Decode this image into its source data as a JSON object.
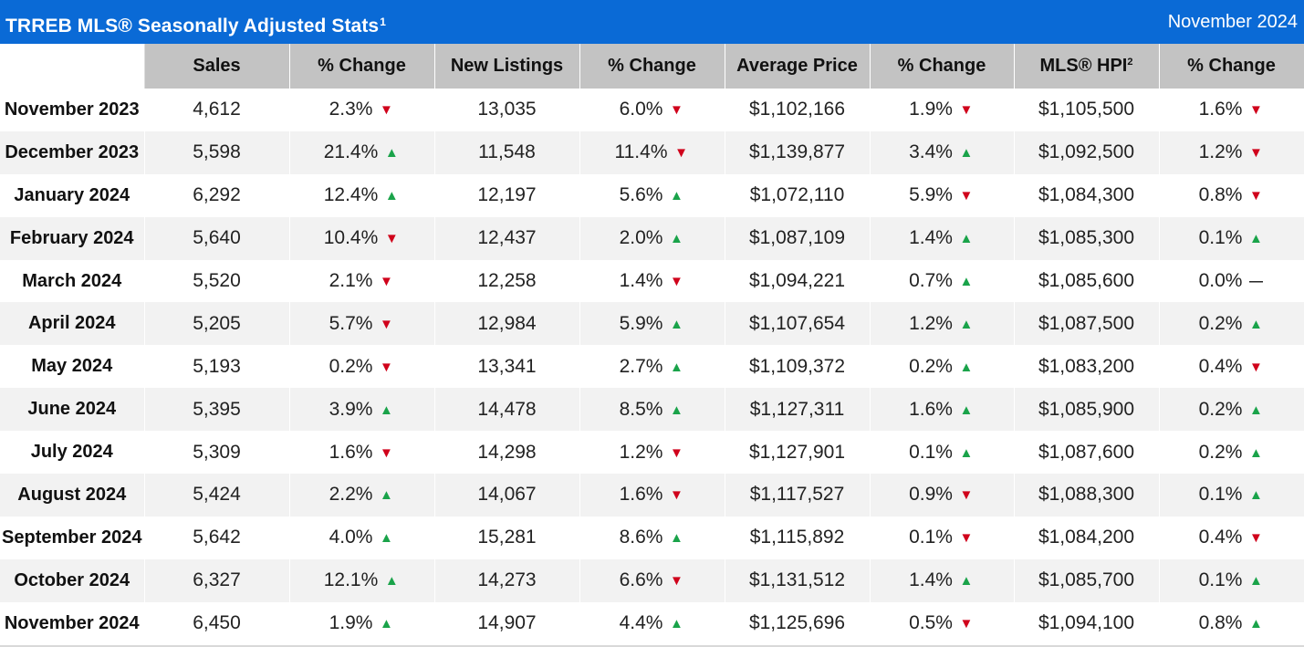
{
  "header": {
    "title": "TRREB MLS® Seasonally Adjusted Stats",
    "title_sup": "1",
    "period": "November 2024"
  },
  "columns": [
    "",
    "Sales",
    "% Change",
    "New Listings",
    "% Change",
    "Average Price",
    "% Change",
    "MLS® HPI",
    "% Change"
  ],
  "hpi_sup": "2",
  "colors": {
    "header_bg": "#0a6ad6",
    "up": "#1aa34a",
    "down": "#d0021b"
  },
  "rows": [
    {
      "month": "November 2023",
      "sales": "4,612",
      "sales_chg": "2.3%",
      "sales_dir": "down",
      "listings": "13,035",
      "listings_chg": "6.0%",
      "listings_dir": "down",
      "avg_price": "$1,102,166",
      "avg_chg": "1.9%",
      "avg_dir": "down",
      "hpi": "$1,105,500",
      "hpi_chg": "1.6%",
      "hpi_dir": "down"
    },
    {
      "month": "December 2023",
      "sales": "5,598",
      "sales_chg": "21.4%",
      "sales_dir": "up",
      "listings": "11,548",
      "listings_chg": "11.4%",
      "listings_dir": "down",
      "avg_price": "$1,139,877",
      "avg_chg": "3.4%",
      "avg_dir": "up",
      "hpi": "$1,092,500",
      "hpi_chg": "1.2%",
      "hpi_dir": "down"
    },
    {
      "month": "January 2024",
      "sales": "6,292",
      "sales_chg": "12.4%",
      "sales_dir": "up",
      "listings": "12,197",
      "listings_chg": "5.6%",
      "listings_dir": "up",
      "avg_price": "$1,072,110",
      "avg_chg": "5.9%",
      "avg_dir": "down",
      "hpi": "$1,084,300",
      "hpi_chg": "0.8%",
      "hpi_dir": "down"
    },
    {
      "month": "February 2024",
      "sales": "5,640",
      "sales_chg": "10.4%",
      "sales_dir": "down",
      "listings": "12,437",
      "listings_chg": "2.0%",
      "listings_dir": "up",
      "avg_price": "$1,087,109",
      "avg_chg": "1.4%",
      "avg_dir": "up",
      "hpi": "$1,085,300",
      "hpi_chg": "0.1%",
      "hpi_dir": "up"
    },
    {
      "month": "March 2024",
      "sales": "5,520",
      "sales_chg": "2.1%",
      "sales_dir": "down",
      "listings": "12,258",
      "listings_chg": "1.4%",
      "listings_dir": "down",
      "avg_price": "$1,094,221",
      "avg_chg": "0.7%",
      "avg_dir": "up",
      "hpi": "$1,085,600",
      "hpi_chg": "0.0%",
      "hpi_dir": "flat"
    },
    {
      "month": "April 2024",
      "sales": "5,205",
      "sales_chg": "5.7%",
      "sales_dir": "down",
      "listings": "12,984",
      "listings_chg": "5.9%",
      "listings_dir": "up",
      "avg_price": "$1,107,654",
      "avg_chg": "1.2%",
      "avg_dir": "up",
      "hpi": "$1,087,500",
      "hpi_chg": "0.2%",
      "hpi_dir": "up"
    },
    {
      "month": "May 2024",
      "sales": "5,193",
      "sales_chg": "0.2%",
      "sales_dir": "down",
      "listings": "13,341",
      "listings_chg": "2.7%",
      "listings_dir": "up",
      "avg_price": "$1,109,372",
      "avg_chg": "0.2%",
      "avg_dir": "up",
      "hpi": "$1,083,200",
      "hpi_chg": "0.4%",
      "hpi_dir": "down"
    },
    {
      "month": "June 2024",
      "sales": "5,395",
      "sales_chg": "3.9%",
      "sales_dir": "up",
      "listings": "14,478",
      "listings_chg": "8.5%",
      "listings_dir": "up",
      "avg_price": "$1,127,311",
      "avg_chg": "1.6%",
      "avg_dir": "up",
      "hpi": "$1,085,900",
      "hpi_chg": "0.2%",
      "hpi_dir": "up"
    },
    {
      "month": "July 2024",
      "sales": "5,309",
      "sales_chg": "1.6%",
      "sales_dir": "down",
      "listings": "14,298",
      "listings_chg": "1.2%",
      "listings_dir": "down",
      "avg_price": "$1,127,901",
      "avg_chg": "0.1%",
      "avg_dir": "up",
      "hpi": "$1,087,600",
      "hpi_chg": "0.2%",
      "hpi_dir": "up"
    },
    {
      "month": "August 2024",
      "sales": "5,424",
      "sales_chg": "2.2%",
      "sales_dir": "up",
      "listings": "14,067",
      "listings_chg": "1.6%",
      "listings_dir": "down",
      "avg_price": "$1,117,527",
      "avg_chg": "0.9%",
      "avg_dir": "down",
      "hpi": "$1,088,300",
      "hpi_chg": "0.1%",
      "hpi_dir": "up"
    },
    {
      "month": "September 2024",
      "sales": "5,642",
      "sales_chg": "4.0%",
      "sales_dir": "up",
      "listings": "15,281",
      "listings_chg": "8.6%",
      "listings_dir": "up",
      "avg_price": "$1,115,892",
      "avg_chg": "0.1%",
      "avg_dir": "down",
      "hpi": "$1,084,200",
      "hpi_chg": "0.4%",
      "hpi_dir": "down"
    },
    {
      "month": "October 2024",
      "sales": "6,327",
      "sales_chg": "12.1%",
      "sales_dir": "up",
      "listings": "14,273",
      "listings_chg": "6.6%",
      "listings_dir": "down",
      "avg_price": "$1,131,512",
      "avg_chg": "1.4%",
      "avg_dir": "up",
      "hpi": "$1,085,700",
      "hpi_chg": "0.1%",
      "hpi_dir": "up"
    },
    {
      "month": "November 2024",
      "sales": "6,450",
      "sales_chg": "1.9%",
      "sales_dir": "up",
      "listings": "14,907",
      "listings_chg": "4.4%",
      "listings_dir": "up",
      "avg_price": "$1,125,696",
      "avg_chg": "0.5%",
      "avg_dir": "down",
      "hpi": "$1,094,100",
      "hpi_chg": "0.8%",
      "hpi_dir": "up"
    }
  ]
}
